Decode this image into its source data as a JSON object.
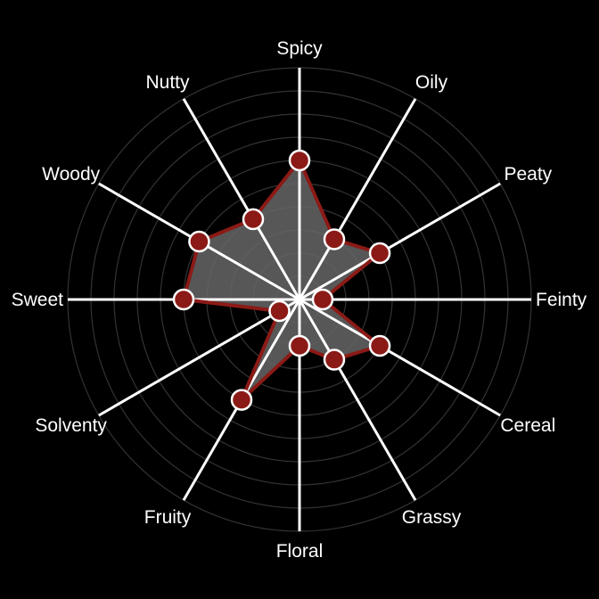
{
  "chart_data": {
    "type": "radar",
    "title": "",
    "categories": [
      "Spicy",
      "Oily",
      "Peaty",
      "Feinty",
      "Cereal",
      "Grassy",
      "Floral",
      "Fruity",
      "Solventy",
      "Sweet",
      "Woody",
      "Nutty"
    ],
    "values": [
      0.6,
      0.3,
      0.4,
      0.1,
      0.4,
      0.3,
      0.2,
      0.5,
      0.1,
      0.5,
      0.5,
      0.4
    ],
    "rlim": [
      0,
      1
    ],
    "grid": true,
    "grid_rings": 10,
    "colors": {
      "background": "#000000",
      "axis": "#ffffff",
      "grid": "#333333",
      "fill": "#666666",
      "line": "#8b1a16",
      "marker": "#8b1a16",
      "marker_edge": "#ffffff",
      "label": "#ffffff"
    }
  }
}
